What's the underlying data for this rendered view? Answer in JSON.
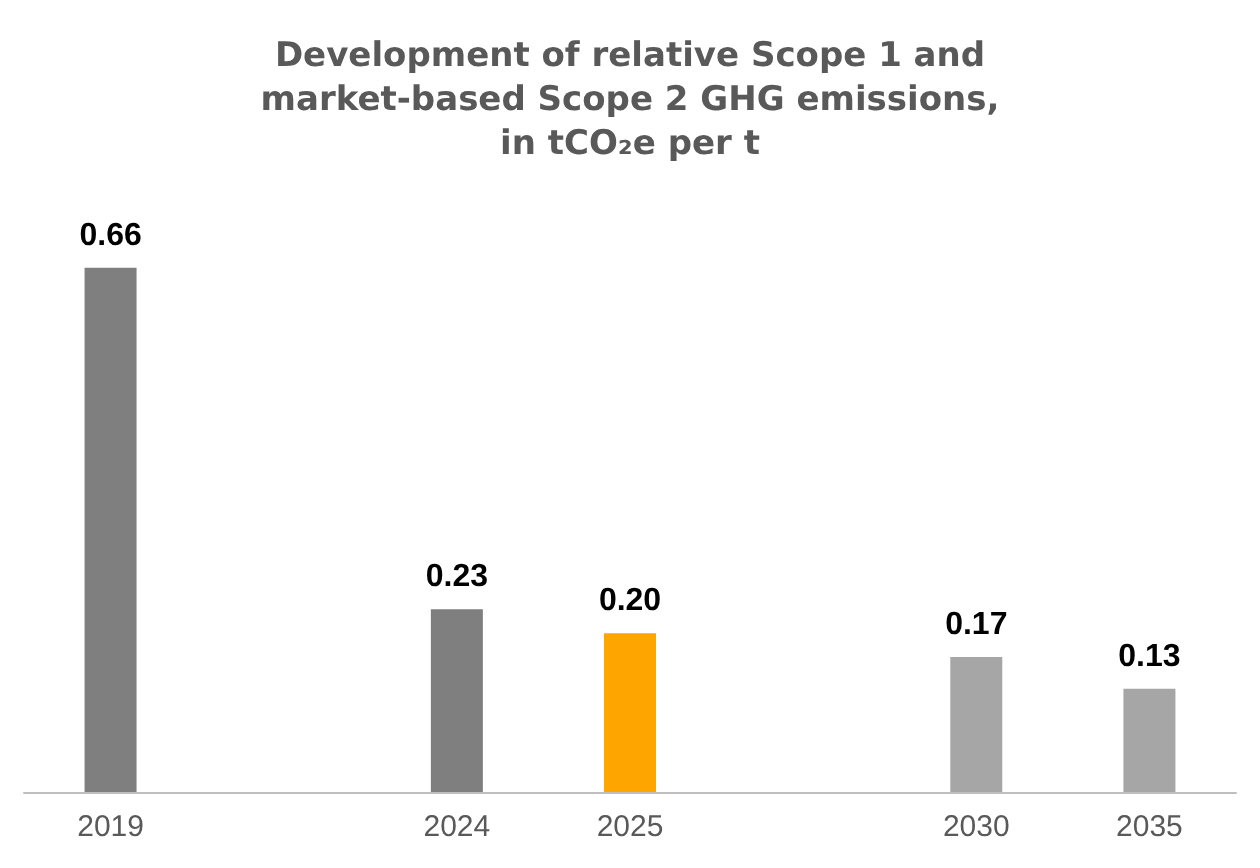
{
  "chart_data": {
    "type": "bar",
    "title": "Development of relative Scope 1 and\nmarket-based Scope 2 GHG emissions,\nin tCO₂e per t",
    "categories": [
      "2019",
      null,
      "2024",
      "2025",
      null,
      "2030",
      "2035"
    ],
    "values": [
      0.66,
      null,
      0.23,
      0.2,
      null,
      0.17,
      0.13
    ],
    "colors": [
      "#7f7f7f",
      "#7f7f7f",
      "#7f7f7f",
      "#ffa500",
      "#7f7f7f",
      "#a6a6a6",
      "#a6a6a6"
    ],
    "value_labels": [
      "0.66",
      null,
      "0.23",
      "0.20",
      null,
      "0.17",
      "0.13"
    ]
  }
}
